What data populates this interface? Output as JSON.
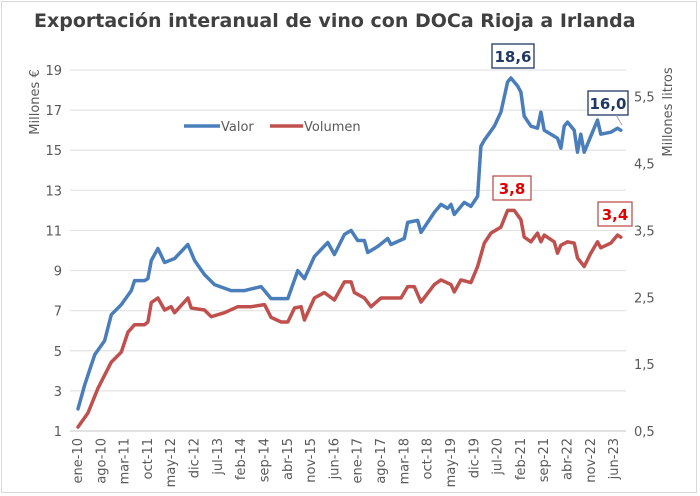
{
  "chart_data": {
    "type": "line",
    "title": "Exportación interanual de vino con DOCa Rioja a Irlanda",
    "ylabel_left": "Millones €",
    "ylabel_right": "Millones litros",
    "x_start": "ene-10",
    "x_unit": "months since ene-10 (monthly series)",
    "x_tick_labels": [
      "ene-10",
      "ago-10",
      "mar-11",
      "oct-11",
      "may-12",
      "dic-12",
      "jul-13",
      "feb-14",
      "sep-14",
      "abr-15",
      "nov-15",
      "jun-16",
      "ene-17",
      "ago-17",
      "mar-18",
      "oct-18",
      "may-19",
      "dic-19",
      "jul-20",
      "feb-21",
      "sep-21",
      "abr-22",
      "nov-22",
      "jun-23"
    ],
    "x_tick_step_months": 7,
    "x_range_months": [
      0,
      163
    ],
    "ylim_left": [
      1,
      19
    ],
    "yticks_left": [
      "1",
      "3",
      "5",
      "7",
      "9",
      "11",
      "13",
      "15",
      "17",
      "19"
    ],
    "ylim_right": [
      0.5,
      5.9
    ],
    "yticks_right": [
      "0,5",
      "1,5",
      "2,5",
      "3,5",
      "4,5",
      "5,5"
    ],
    "grid": true,
    "legend_placement": "upper-left inside",
    "series": [
      {
        "name": "Valor",
        "axis": "left",
        "color": "#4a7ebb",
        "points": [
          [
            0,
            2.1
          ],
          [
            2,
            3.3
          ],
          [
            5,
            4.8
          ],
          [
            8,
            5.5
          ],
          [
            10,
            6.8
          ],
          [
            13,
            7.3
          ],
          [
            16,
            8.0
          ],
          [
            17,
            8.5
          ],
          [
            20,
            8.5
          ],
          [
            21,
            8.6
          ],
          [
            22,
            9.5
          ],
          [
            24,
            10.1
          ],
          [
            26,
            9.4
          ],
          [
            29,
            9.6
          ],
          [
            33,
            10.3
          ],
          [
            35,
            9.5
          ],
          [
            38,
            8.8
          ],
          [
            41,
            8.3
          ],
          [
            46,
            8.0
          ],
          [
            50,
            8.0
          ],
          [
            55,
            8.2
          ],
          [
            58,
            7.6
          ],
          [
            63,
            7.6
          ],
          [
            66,
            9.0
          ],
          [
            68,
            8.6
          ],
          [
            71,
            9.7
          ],
          [
            75,
            10.4
          ],
          [
            77,
            9.8
          ],
          [
            80,
            10.8
          ],
          [
            82,
            11.0
          ],
          [
            84,
            10.5
          ],
          [
            86,
            10.5
          ],
          [
            87,
            9.9
          ],
          [
            90,
            10.2
          ],
          [
            93,
            10.6
          ],
          [
            94,
            10.3
          ],
          [
            98,
            10.6
          ],
          [
            99,
            11.4
          ],
          [
            102,
            11.5
          ],
          [
            103,
            10.9
          ],
          [
            107,
            11.9
          ],
          [
            109,
            12.3
          ],
          [
            111,
            12.1
          ],
          [
            112,
            12.3
          ],
          [
            113,
            11.8
          ],
          [
            116,
            12.4
          ],
          [
            118,
            12.2
          ],
          [
            120,
            12.7
          ],
          [
            121,
            15.2
          ],
          [
            122,
            15.5
          ],
          [
            125,
            16.2
          ],
          [
            127,
            16.9
          ],
          [
            129,
            18.4
          ],
          [
            130,
            18.6
          ],
          [
            132,
            18.2
          ],
          [
            133,
            17.9
          ],
          [
            134,
            16.7
          ],
          [
            136,
            16.2
          ],
          [
            138,
            16.1
          ],
          [
            139,
            16.9
          ],
          [
            140,
            16.0
          ],
          [
            142,
            15.8
          ],
          [
            144,
            15.6
          ],
          [
            145,
            15.1
          ],
          [
            146,
            16.2
          ],
          [
            147,
            16.4
          ],
          [
            149,
            16.0
          ],
          [
            150,
            14.9
          ],
          [
            151,
            15.8
          ],
          [
            152,
            14.9
          ],
          [
            154,
            15.7
          ],
          [
            156,
            16.5
          ],
          [
            157,
            15.8
          ],
          [
            160,
            15.9
          ],
          [
            162,
            16.1
          ],
          [
            163,
            16.0
          ]
        ]
      },
      {
        "name": "Volumen",
        "axis": "right",
        "color": "#c0504d",
        "points": [
          [
            0,
            0.56
          ],
          [
            3,
            0.77
          ],
          [
            6,
            1.14
          ],
          [
            10,
            1.53
          ],
          [
            13,
            1.68
          ],
          [
            15,
            1.98
          ],
          [
            17,
            2.09
          ],
          [
            20,
            2.09
          ],
          [
            21,
            2.13
          ],
          [
            22,
            2.42
          ],
          [
            24,
            2.49
          ],
          [
            26,
            2.31
          ],
          [
            28,
            2.36
          ],
          [
            29,
            2.27
          ],
          [
            33,
            2.49
          ],
          [
            34,
            2.34
          ],
          [
            38,
            2.31
          ],
          [
            40,
            2.21
          ],
          [
            44,
            2.27
          ],
          [
            48,
            2.36
          ],
          [
            52,
            2.36
          ],
          [
            56,
            2.39
          ],
          [
            58,
            2.2
          ],
          [
            61,
            2.13
          ],
          [
            63,
            2.13
          ],
          [
            65,
            2.34
          ],
          [
            67,
            2.36
          ],
          [
            68,
            2.16
          ],
          [
            71,
            2.49
          ],
          [
            74,
            2.57
          ],
          [
            77,
            2.46
          ],
          [
            80,
            2.73
          ],
          [
            82,
            2.73
          ],
          [
            83,
            2.57
          ],
          [
            86,
            2.49
          ],
          [
            88,
            2.36
          ],
          [
            91,
            2.49
          ],
          [
            94,
            2.49
          ],
          [
            97,
            2.49
          ],
          [
            99,
            2.66
          ],
          [
            101,
            2.66
          ],
          [
            103,
            2.43
          ],
          [
            107,
            2.69
          ],
          [
            109,
            2.76
          ],
          [
            112,
            2.69
          ],
          [
            113,
            2.58
          ],
          [
            115,
            2.76
          ],
          [
            118,
            2.72
          ],
          [
            120,
            2.96
          ],
          [
            122,
            3.31
          ],
          [
            124,
            3.46
          ],
          [
            127,
            3.55
          ],
          [
            129,
            3.8
          ],
          [
            131,
            3.8
          ],
          [
            133,
            3.66
          ],
          [
            134,
            3.4
          ],
          [
            136,
            3.33
          ],
          [
            138,
            3.46
          ],
          [
            139,
            3.33
          ],
          [
            140,
            3.43
          ],
          [
            143,
            3.33
          ],
          [
            144,
            3.16
          ],
          [
            145,
            3.28
          ],
          [
            147,
            3.33
          ],
          [
            149,
            3.31
          ],
          [
            150,
            3.09
          ],
          [
            152,
            2.96
          ],
          [
            154,
            3.16
          ],
          [
            156,
            3.33
          ],
          [
            157,
            3.24
          ],
          [
            160,
            3.31
          ],
          [
            162,
            3.43
          ],
          [
            163,
            3.4
          ]
        ]
      }
    ],
    "annotations": [
      {
        "series": "Valor",
        "label": "18,6",
        "at_month": 130,
        "color": "#1f3864"
      },
      {
        "series": "Valor",
        "label": "16,0",
        "at_month": 163,
        "color": "#1f3864"
      },
      {
        "series": "Volumen",
        "label": "3,8",
        "at_month": 130,
        "color": "#e00000"
      },
      {
        "series": "Volumen",
        "label": "3,4",
        "at_month": 163,
        "color": "#e00000"
      }
    ]
  }
}
